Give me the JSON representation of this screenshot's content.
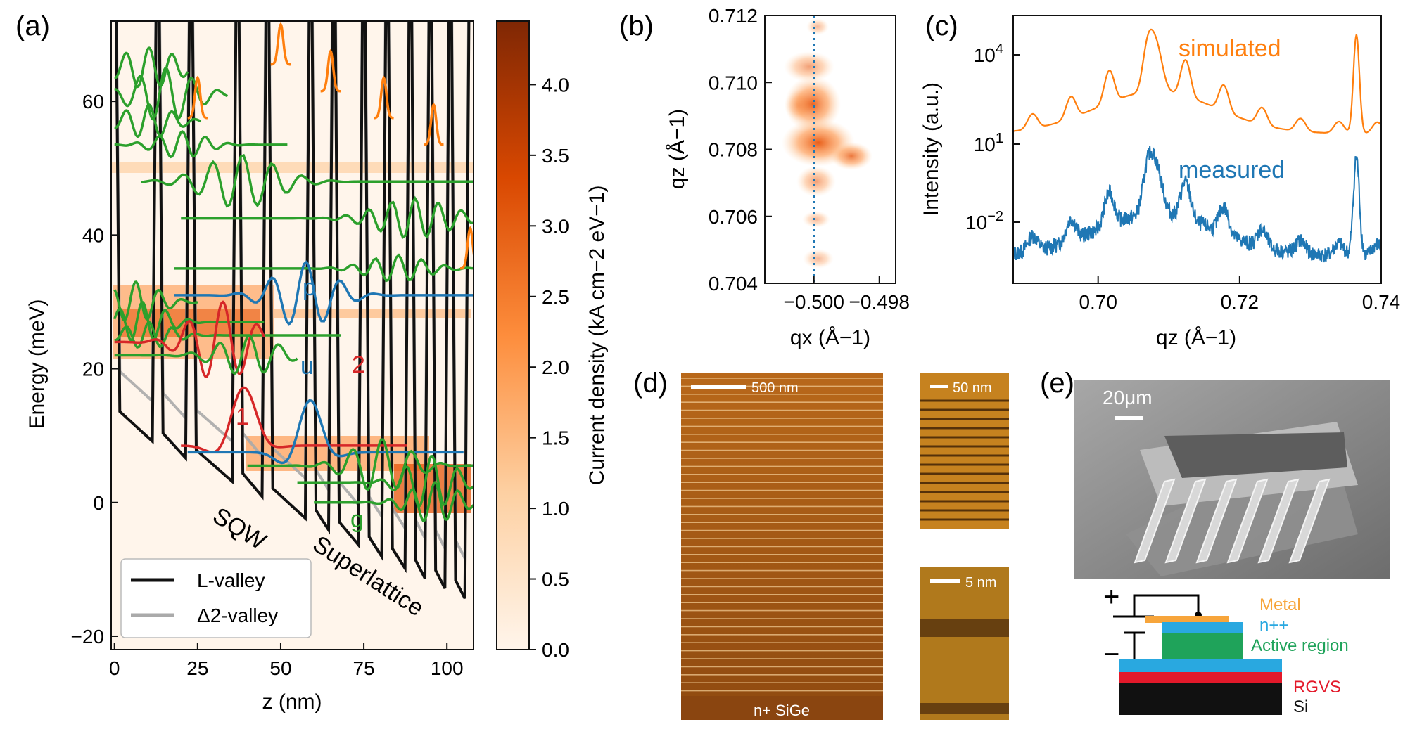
{
  "panel_labels": {
    "a": "(a)",
    "b": "(b)",
    "c": "(c)",
    "d": "(d)",
    "e": "(e)"
  },
  "colors": {
    "l_valley": "#111111",
    "delta_valley": "#aaaaaa",
    "green": "#2ca02c",
    "blue": "#1f77b4",
    "red": "#d62728",
    "orange": "#ff7f0e",
    "cmap_low": "#fff5eb",
    "cmap_high": "#7f2704"
  },
  "chart_data": [
    {
      "id": "a",
      "type": "line",
      "xlabel": "z (nm)",
      "ylabel": "Energy (meV)",
      "xlim": [
        -1,
        108
      ],
      "ylim": [
        -22,
        72
      ],
      "xticks": [
        0,
        25,
        50,
        75,
        100
      ],
      "yticks": [
        -20,
        0,
        20,
        40,
        60
      ],
      "series": [
        {
          "name": "L-valley"
        },
        {
          "name": "Δ2-valley"
        }
      ],
      "annotations": {
        "sqw": "SQW",
        "superlattice": "Superlattice",
        "p": "p",
        "u": "u",
        "one": "1",
        "two": "2",
        "g": "g"
      },
      "legend_loc": "lower-left",
      "colorbar": {
        "label": "Current density (kA cm−2 eV−1)",
        "ticks": [
          0.0,
          0.5,
          1.0,
          1.5,
          2.0,
          2.5,
          3.0,
          3.5,
          4.0
        ],
        "range": [
          0,
          4.45
        ]
      }
    },
    {
      "id": "b",
      "type": "heatmap",
      "xlabel": "qx (Å−1)",
      "ylabel": "qz (Å−1)",
      "xlim": [
        -0.5015,
        -0.4975
      ],
      "ylim": [
        0.704,
        0.712
      ],
      "xticks": [
        -0.5,
        -0.498
      ],
      "yticks": [
        0.704,
        0.706,
        0.708,
        0.71,
        0.712
      ],
      "dashed_line_x": -0.5
    },
    {
      "id": "c",
      "type": "line",
      "xlabel": "qz (Å−1)",
      "ylabel": "Intensity (a.u.)",
      "xlim": [
        0.688,
        0.74
      ],
      "xticks": [
        0.7,
        0.72,
        0.74
      ],
      "yscale": "log",
      "ytick_labels": [
        "10^4",
        "10^1",
        "10^-2"
      ],
      "series": [
        {
          "name": "simulated",
          "peak_x": [
            0.7082,
            0.7365
          ]
        },
        {
          "name": "measured",
          "peak_x": [
            0.7082,
            0.7365
          ]
        }
      ]
    }
  ],
  "panel_d": {
    "scale_1": "500 nm",
    "scale_2": "50 nm",
    "scale_3": "5 nm",
    "substrate": "n+ SiGe"
  },
  "panel_e": {
    "scale": "20μm",
    "plus": "+",
    "minus": "−",
    "layers": {
      "metal": "Metal",
      "npp": "n++",
      "active": "Active region",
      "rgvs": "RGVS",
      "si": "Si"
    }
  }
}
